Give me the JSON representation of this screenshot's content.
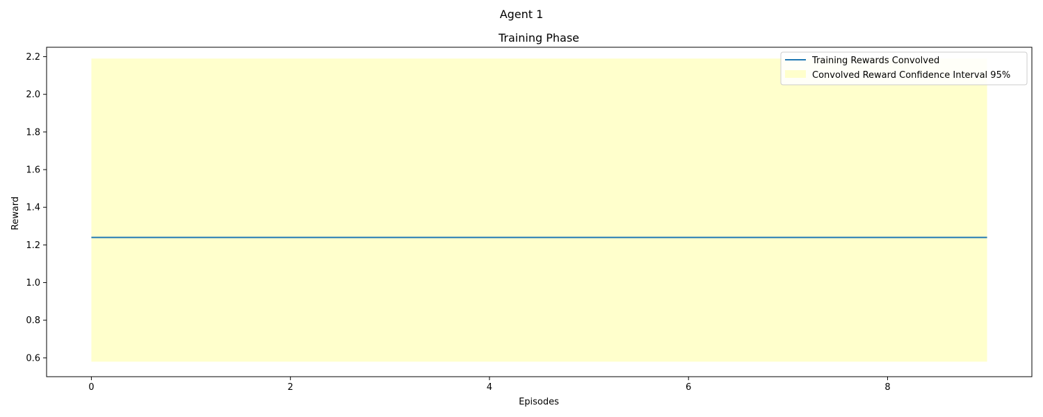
{
  "figure": {
    "suptitle": "Agent 1"
  },
  "chart_data": {
    "type": "line",
    "title": "Training Phase",
    "xlabel": "Episodes",
    "ylabel": "Reward",
    "xlim": [
      -0.45,
      9.45
    ],
    "ylim": [
      0.5,
      2.25
    ],
    "xticks": [
      0,
      2,
      4,
      6,
      8
    ],
    "xtick_labels": [
      "0",
      "2",
      "4",
      "6",
      "8"
    ],
    "yticks": [
      0.6,
      0.8,
      1.0,
      1.2,
      1.4,
      1.6,
      1.8,
      2.0,
      2.2
    ],
    "ytick_labels": [
      "0.6",
      "0.8",
      "1.0",
      "1.2",
      "1.4",
      "1.6",
      "1.8",
      "2.0",
      "2.2"
    ],
    "grid": false,
    "legend_position": "top-right",
    "x": [
      0,
      1,
      2,
      3,
      4,
      5,
      6,
      7,
      8,
      9
    ],
    "series": [
      {
        "name": "Training Rewards Convolved",
        "kind": "line",
        "color": "#1f77b4",
        "values": [
          1.24,
          1.24,
          1.24,
          1.24,
          1.24,
          1.24,
          1.24,
          1.24,
          1.24,
          1.24
        ]
      },
      {
        "name": "Convolved Reward Confidence Interval 95%",
        "kind": "band",
        "color": "#ffffcc",
        "lower": [
          0.58,
          0.58,
          0.58,
          0.58,
          0.58,
          0.58,
          0.58,
          0.58,
          0.58,
          0.58
        ],
        "upper": [
          2.19,
          2.19,
          2.19,
          2.19,
          2.19,
          2.19,
          2.19,
          2.19,
          2.19,
          2.19
        ]
      }
    ]
  }
}
